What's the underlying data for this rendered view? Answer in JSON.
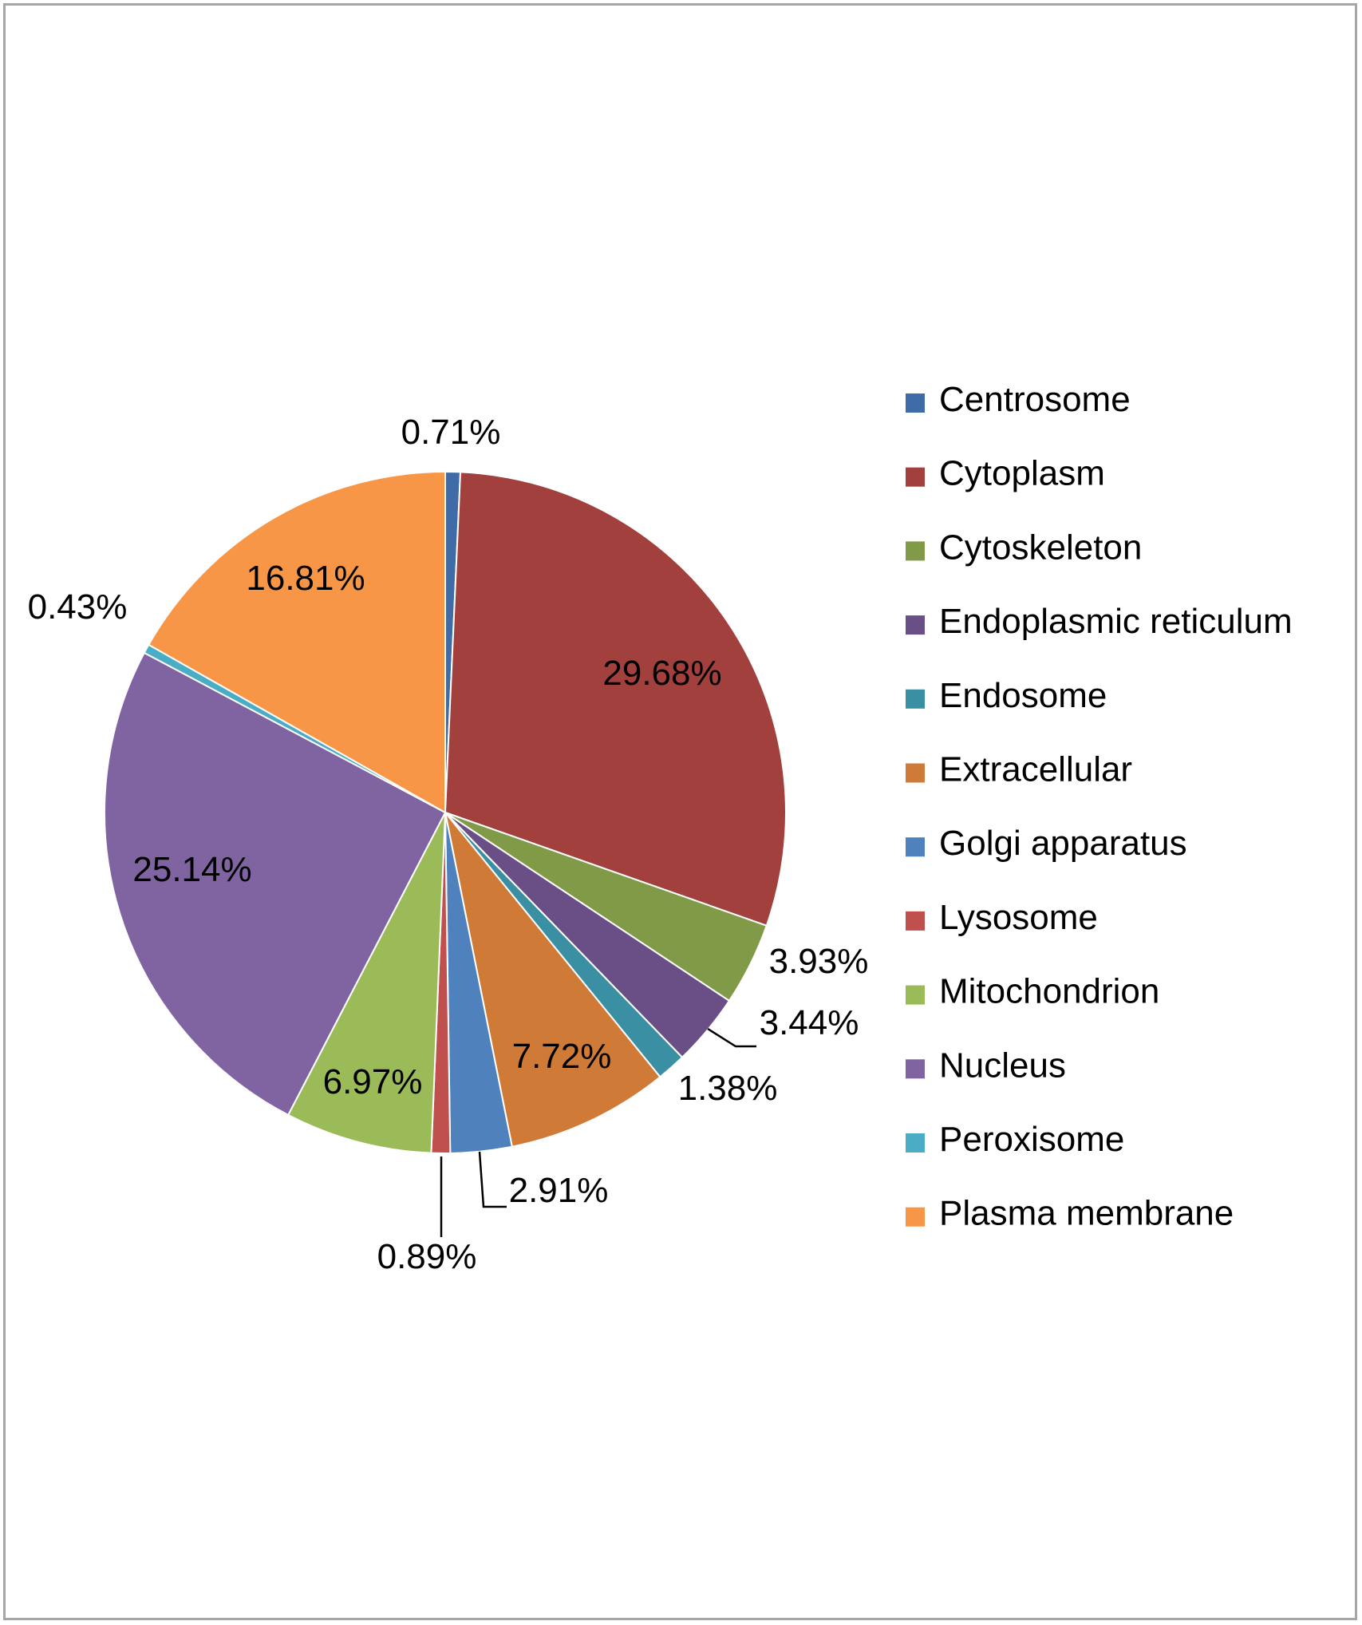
{
  "chart_data": {
    "type": "pie",
    "start_angle": "12 o'clock, clockwise",
    "legend_position": "right",
    "categories": [
      "Centrosome",
      "Cytoplasm",
      "Cytoskeleton",
      "Endoplasmic reticulum",
      "Endosome",
      "Extracellular",
      "Golgi apparatus",
      "Lysosome",
      "Mitochondrion",
      "Nucleus",
      "Peroxisome",
      "Plasma membrane"
    ],
    "values": [
      0.71,
      29.68,
      3.93,
      3.44,
      1.38,
      7.72,
      2.91,
      0.89,
      6.97,
      25.14,
      0.43,
      16.81
    ],
    "labels": [
      "0.71%",
      "29.68%",
      "3.93%",
      "3.44%",
      "1.38%",
      "7.72%",
      "2.91%",
      "0.89%",
      "6.97%",
      "25.14%",
      "0.43%",
      "16.81%"
    ],
    "colors": [
      "#3F6CA6",
      "#A1403D",
      "#809A48",
      "#6A4F87",
      "#3A8FA3",
      "#CF7B37",
      "#4F81BD",
      "#C0504D",
      "#9BBB59",
      "#8064A2",
      "#4BACC6",
      "#F79646"
    ]
  }
}
